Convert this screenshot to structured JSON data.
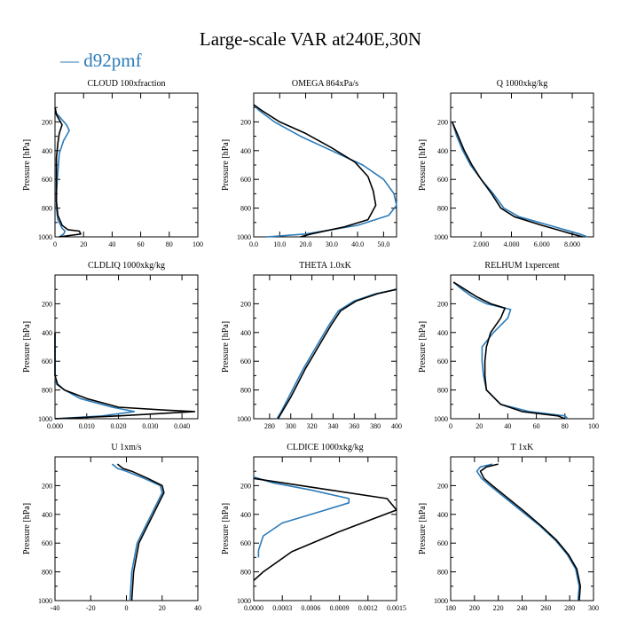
{
  "page": {
    "title": "Large-scale VAR at240E,30N",
    "legend_symbol": "—",
    "legend_label": "d92pmf"
  },
  "colors": {
    "model": "#2b7bb9",
    "reference": "#000000"
  },
  "chart_data": [
    {
      "type": "line",
      "title": "CLOUD  100xfraction",
      "ylabel": "Pressure [hPa]",
      "xlim": [
        0,
        100
      ],
      "ylim": [
        1000,
        0
      ],
      "xticks": [
        0,
        20,
        40,
        60,
        80,
        100
      ],
      "xticklabels": [
        "0",
        "20",
        "40",
        "60",
        "80",
        "100"
      ],
      "yticks": [
        200,
        400,
        600,
        800,
        1000
      ],
      "yticklabels": [
        "200",
        "400",
        "600",
        "800",
        "1000"
      ],
      "series": [
        {
          "role": "model",
          "x": [
            0,
            1,
            8,
            10,
            6,
            3,
            2,
            1,
            1,
            2,
            5,
            7,
            6,
            3
          ],
          "y": [
            100,
            140,
            220,
            260,
            330,
            420,
            550,
            700,
            800,
            880,
            940,
            960,
            980,
            1000
          ]
        },
        {
          "role": "reference",
          "x": [
            0,
            1,
            5,
            3,
            2,
            1,
            1,
            1,
            2,
            5,
            9,
            17,
            18,
            3
          ],
          "y": [
            100,
            150,
            220,
            280,
            350,
            450,
            600,
            750,
            850,
            920,
            950,
            960,
            980,
            1000
          ]
        }
      ]
    },
    {
      "type": "line",
      "title": "OMEGA  864xPa/s",
      "ylabel": "Pressure [hPa]",
      "xlim": [
        0,
        55
      ],
      "ylim": [
        1000,
        0
      ],
      "xticks": [
        0,
        10,
        20,
        30,
        40,
        50
      ],
      "xticklabels": [
        "0.0",
        "10.0",
        "20.0",
        "30.0",
        "40.0",
        "50.0"
      ],
      "yticks": [
        200,
        400,
        600,
        800,
        1000
      ],
      "yticklabels": [
        "200",
        "400",
        "600",
        "800",
        "1000"
      ],
      "series": [
        {
          "role": "model",
          "x": [
            0,
            2,
            8,
            18,
            30,
            42,
            50,
            54,
            55,
            52,
            40,
            20,
            5
          ],
          "y": [
            80,
            120,
            200,
            300,
            400,
            500,
            600,
            700,
            780,
            850,
            920,
            980,
            1000
          ]
        },
        {
          "role": "reference",
          "x": [
            0,
            3,
            10,
            20,
            30,
            39,
            44,
            46,
            47,
            44,
            35,
            22,
            18
          ],
          "y": [
            80,
            120,
            200,
            280,
            380,
            480,
            580,
            680,
            780,
            880,
            930,
            980,
            1000
          ]
        }
      ]
    },
    {
      "type": "line",
      "title": "Q  1000xkg/kg",
      "ylabel": "Pressure [hPa]",
      "xlim": [
        0,
        9400
      ],
      "ylim": [
        1000,
        0
      ],
      "xticks": [
        2000,
        4000,
        6000,
        8000
      ],
      "xticklabels": [
        "2.000",
        "4.000",
        "6.000",
        "8.000"
      ],
      "yticks": [
        200,
        400,
        600,
        800,
        1000
      ],
      "yticklabels": [
        "200",
        "400",
        "600",
        "800",
        "1000"
      ],
      "series": [
        {
          "role": "model",
          "x": [
            100,
            400,
            800,
            1300,
            2000,
            2800,
            3500,
            4500,
            6500,
            8500,
            9000
          ],
          "y": [
            200,
            300,
            400,
            500,
            600,
            700,
            800,
            860,
            920,
            980,
            1000
          ]
        },
        {
          "role": "reference",
          "x": [
            100,
            500,
            900,
            1400,
            2000,
            2700,
            3300,
            4200,
            6000,
            8000,
            8700
          ],
          "y": [
            200,
            300,
            400,
            500,
            600,
            700,
            800,
            860,
            920,
            980,
            1000
          ]
        }
      ]
    },
    {
      "type": "line",
      "title": "CLDLIQ  1000xkg/kg",
      "ylabel": "Pressure [hPa]",
      "xlim": [
        0,
        0.045
      ],
      "ylim": [
        1000,
        0
      ],
      "xticks": [
        0,
        0.01,
        0.02,
        0.03,
        0.04
      ],
      "xticklabels": [
        "0.000",
        "0.010",
        "0.020",
        "0.030",
        "0.040"
      ],
      "yticks": [
        200,
        400,
        600,
        800,
        1000
      ],
      "yticklabels": [
        "200",
        "400",
        "600",
        "800",
        "1000"
      ],
      "series": [
        {
          "role": "model",
          "x": [
            0,
            0,
            0,
            0.0005,
            0.003,
            0.008,
            0.018,
            0.025,
            0.015,
            0.004,
            0
          ],
          "y": [
            400,
            600,
            700,
            760,
            800,
            860,
            920,
            950,
            980,
            995,
            1000
          ]
        },
        {
          "role": "reference",
          "x": [
            0,
            0,
            0,
            0.0008,
            0.003,
            0.01,
            0.02,
            0.035,
            0.044,
            0.02,
            0
          ],
          "y": [
            400,
            600,
            700,
            760,
            800,
            860,
            920,
            940,
            950,
            980,
            1000
          ]
        }
      ]
    },
    {
      "type": "line",
      "title": "THETA  1.0xK",
      "ylabel": "Pressure [hPa]",
      "xlim": [
        265,
        400
      ],
      "ylim": [
        1000,
        0
      ],
      "xticks": [
        280,
        300,
        320,
        340,
        360,
        380,
        400
      ],
      "xticklabels": [
        "280",
        "300",
        "320",
        "340",
        "360",
        "380",
        "400"
      ],
      "yticks": [
        200,
        400,
        600,
        800,
        1000
      ],
      "yticklabels": [
        "200",
        "400",
        "600",
        "800",
        "1000"
      ],
      "series": [
        {
          "role": "model",
          "x": [
            287,
            291,
            298,
            305,
            312,
            320,
            328,
            336,
            345,
            360,
            380,
            400
          ],
          "y": [
            1000,
            950,
            850,
            750,
            650,
            550,
            450,
            350,
            250,
            180,
            130,
            100
          ]
        },
        {
          "role": "reference",
          "x": [
            288,
            292,
            300,
            307,
            314,
            322,
            330,
            338,
            347,
            362,
            382,
            400
          ],
          "y": [
            1000,
            950,
            850,
            750,
            650,
            550,
            450,
            350,
            250,
            180,
            130,
            100
          ]
        }
      ]
    },
    {
      "type": "line",
      "title": "RELHUM  1xpercent",
      "ylabel": "Pressure [hPa]",
      "xlim": [
        0,
        100
      ],
      "ylim": [
        1000,
        0
      ],
      "xticks": [
        0,
        20,
        40,
        60,
        80,
        100
      ],
      "xticklabels": [
        "0",
        "20",
        "40",
        "60",
        "80",
        "100"
      ],
      "yticks": [
        200,
        400,
        600,
        800,
        1000
      ],
      "yticklabels": [
        "200",
        "400",
        "600",
        "800",
        "1000"
      ],
      "series": [
        {
          "role": "model",
          "x": [
            2,
            8,
            15,
            25,
            42,
            40,
            30,
            22,
            22,
            23,
            25,
            35,
            55,
            80,
            82
          ],
          "y": [
            50,
            100,
            150,
            200,
            240,
            300,
            400,
            500,
            600,
            700,
            800,
            900,
            950,
            980,
            1000
          ]
        },
        {
          "role": "reference",
          "x": [
            2,
            10,
            18,
            28,
            38,
            35,
            28,
            25,
            24,
            24,
            25,
            35,
            50,
            75,
            80
          ],
          "y": [
            50,
            100,
            150,
            200,
            230,
            300,
            400,
            500,
            600,
            700,
            800,
            900,
            950,
            980,
            1000
          ]
        }
      ]
    },
    {
      "type": "line",
      "title": "U  1xm/s",
      "ylabel": "Pressure [hPa]",
      "xlim": [
        -40,
        40
      ],
      "ylim": [
        1000,
        0
      ],
      "xticks": [
        -40,
        -20,
        0,
        20,
        40
      ],
      "xticklabels": [
        "-40",
        "-20",
        "0",
        "20",
        "40"
      ],
      "yticks": [
        200,
        400,
        600,
        800,
        1000
      ],
      "yticklabels": [
        "200",
        "400",
        "600",
        "800",
        "1000"
      ],
      "series": [
        {
          "role": "model",
          "x": [
            -8,
            -5,
            0,
            10,
            19,
            20,
            18,
            14,
            10,
            6,
            3,
            2
          ],
          "y": [
            50,
            80,
            100,
            150,
            200,
            250,
            300,
            400,
            500,
            600,
            800,
            1000
          ]
        },
        {
          "role": "reference",
          "x": [
            -5,
            -2,
            3,
            12,
            20,
            21,
            19,
            15,
            11,
            7,
            4,
            3
          ],
          "y": [
            50,
            80,
            100,
            150,
            200,
            250,
            300,
            400,
            500,
            600,
            800,
            1000
          ]
        }
      ]
    },
    {
      "type": "line",
      "title": "CLDICE  1000xkg/kg",
      "ylabel": "Pressure [hPa]",
      "xlim": [
        0,
        0.0015
      ],
      "ylim": [
        1000,
        0
      ],
      "xticks": [
        0,
        0.0003,
        0.0006,
        0.0009,
        0.0012,
        0.0015
      ],
      "xticklabels": [
        "0.0000",
        "0.0003",
        "0.0006",
        "0.0009",
        "0.0012",
        "0.0015"
      ],
      "yticks": [
        200,
        400,
        600,
        800,
        1000
      ],
      "yticklabels": [
        "200",
        "400",
        "600",
        "800",
        "1000"
      ],
      "series": [
        {
          "role": "model",
          "x": [
            0,
            0.0002,
            0.0006,
            0.001,
            0.001,
            0.0007,
            0.0003,
            0.0001,
            5e-05,
            5e-05
          ],
          "y": [
            140,
            180,
            230,
            290,
            320,
            380,
            460,
            550,
            650,
            700
          ]
        },
        {
          "role": "reference",
          "x": [
            0,
            0.0003,
            0.0008,
            0.0014,
            0.0015,
            0.0013,
            0.0009,
            0.0004,
            0.0001,
            0
          ],
          "y": [
            150,
            180,
            230,
            290,
            370,
            420,
            520,
            660,
            800,
            860
          ]
        }
      ]
    },
    {
      "type": "line",
      "title": "T  1xK",
      "ylabel": "Pressure [hPa]",
      "xlim": [
        180,
        300
      ],
      "ylim": [
        1000,
        0
      ],
      "xticks": [
        180,
        200,
        220,
        240,
        260,
        280,
        300
      ],
      "xticklabels": [
        "180",
        "200",
        "220",
        "240",
        "260",
        "280",
        "300"
      ],
      "yticks": [
        200,
        400,
        600,
        800,
        1000
      ],
      "yticklabels": [
        "200",
        "400",
        "600",
        "800",
        "1000"
      ],
      "series": [
        {
          "role": "model",
          "x": [
            215,
            205,
            202,
            206,
            213,
            225,
            240,
            255,
            268,
            278,
            285,
            288,
            287
          ],
          "y": [
            50,
            70,
            100,
            150,
            200,
            280,
            380,
            480,
            580,
            680,
            780,
            900,
            1000
          ]
        },
        {
          "role": "reference",
          "x": [
            220,
            210,
            205,
            208,
            215,
            227,
            242,
            256,
            269,
            279,
            286,
            289,
            288
          ],
          "y": [
            50,
            70,
            100,
            150,
            200,
            280,
            380,
            480,
            580,
            680,
            780,
            900,
            1000
          ]
        }
      ]
    }
  ]
}
